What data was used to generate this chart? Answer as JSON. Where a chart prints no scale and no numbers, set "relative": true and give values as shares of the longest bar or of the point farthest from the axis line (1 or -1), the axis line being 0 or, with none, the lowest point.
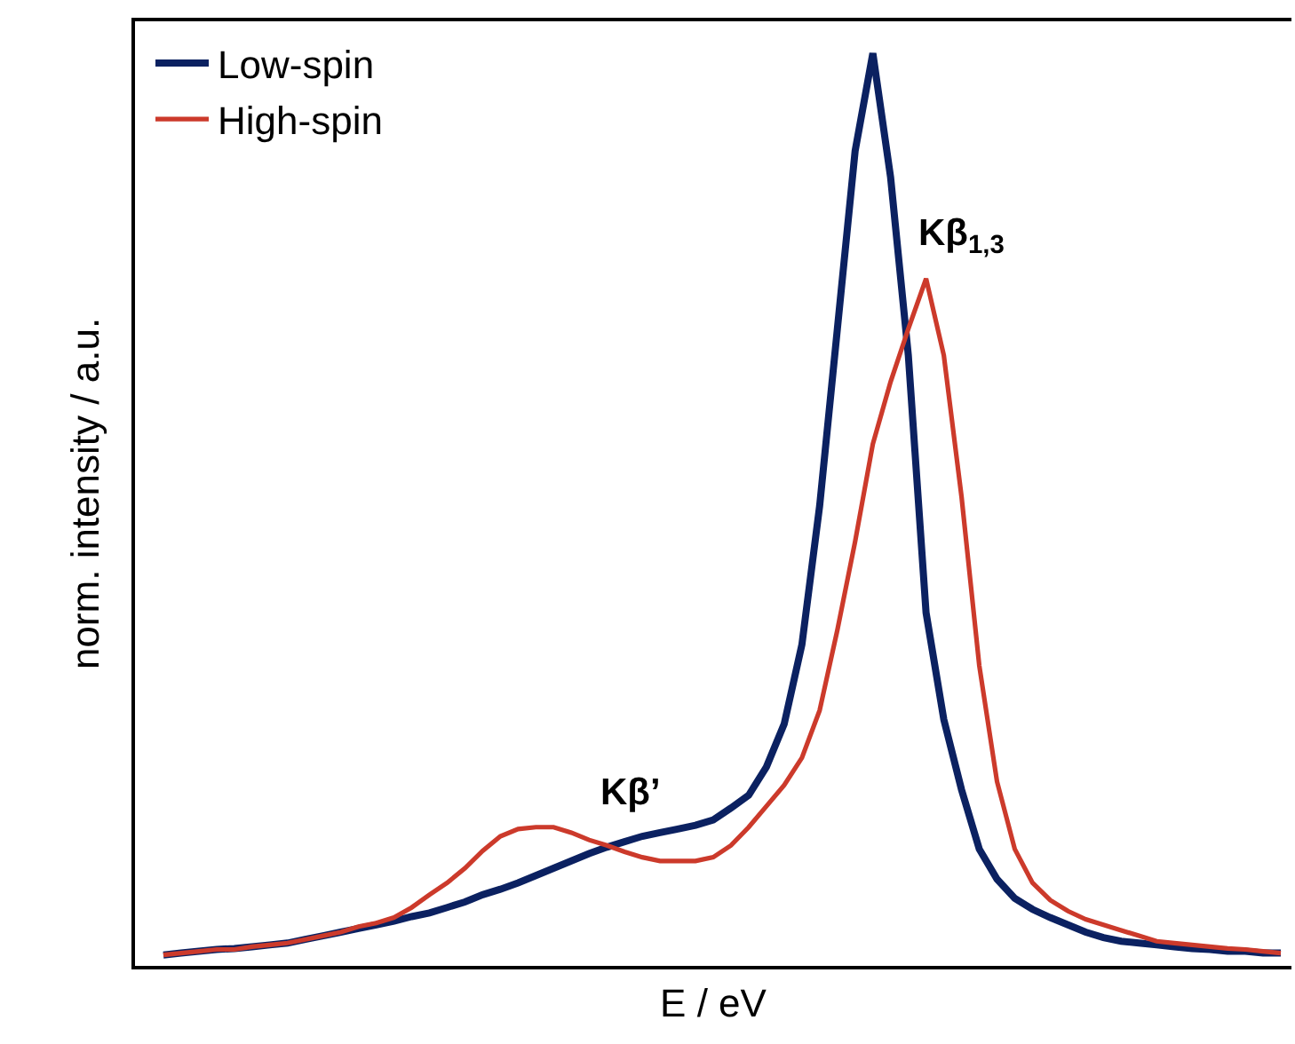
{
  "chart_data": {
    "type": "line",
    "xlabel": "E / eV",
    "ylabel": "norm. intensity / a.u.",
    "relative": true,
    "legend": "top left",
    "grid": false,
    "marker": "none",
    "line_style": "solid",
    "categories": [
      null,
      null,
      null,
      null,
      null,
      null,
      null,
      null,
      null,
      null,
      null,
      null,
      null,
      null,
      null,
      null,
      null,
      null,
      null,
      null,
      null,
      null,
      null,
      null,
      null,
      null,
      null,
      null,
      null,
      null,
      null,
      null,
      null,
      null,
      null,
      null,
      null,
      null,
      null,
      null,
      null,
      null,
      null,
      null,
      null,
      null,
      null,
      null,
      null,
      null,
      null,
      null,
      null,
      null,
      null,
      null,
      null,
      null,
      null,
      null,
      null,
      null,
      null,
      null
    ],
    "series": [
      {
        "name": "Low-spin",
        "color": "#0b2161",
        "values": [
          0.012,
          0.014,
          0.016,
          0.018,
          0.019,
          0.021,
          0.023,
          0.025,
          0.029,
          0.033,
          0.037,
          0.041,
          0.045,
          0.049,
          0.054,
          0.058,
          0.064,
          0.07,
          0.078,
          0.084,
          0.091,
          0.099,
          0.107,
          0.115,
          0.123,
          0.13,
          0.136,
          0.142,
          0.146,
          0.15,
          0.154,
          0.16,
          0.173,
          0.187,
          0.218,
          0.265,
          0.352,
          0.504,
          0.698,
          0.893,
          1,
          0.864,
          0.669,
          0.387,
          0.27,
          0.193,
          0.128,
          0.095,
          0.074,
          0.062,
          0.053,
          0.045,
          0.037,
          0.031,
          0.027,
          0.025,
          0.023,
          0.021,
          0.019,
          0.018,
          0.016,
          0.016,
          0.014,
          0.014
        ]
      },
      {
        "name": "High-spin",
        "color": "#cc3a2b",
        "values": [
          0.012,
          0.014,
          0.016,
          0.018,
          0.018,
          0.021,
          0.023,
          0.025,
          0.029,
          0.033,
          0.037,
          0.043,
          0.047,
          0.053,
          0.064,
          0.078,
          0.091,
          0.107,
          0.126,
          0.142,
          0.15,
          0.152,
          0.152,
          0.146,
          0.138,
          0.132,
          0.125,
          0.119,
          0.115,
          0.115,
          0.115,
          0.119,
          0.132,
          0.152,
          0.175,
          0.198,
          0.228,
          0.28,
          0.368,
          0.465,
          0.572,
          0.64,
          0.698,
          0.753,
          0.669,
          0.514,
          0.329,
          0.202,
          0.128,
          0.091,
          0.072,
          0.06,
          0.051,
          0.045,
          0.039,
          0.033,
          0.027,
          0.025,
          0.023,
          0.021,
          0.019,
          0.018,
          0.016,
          0.014
        ]
      }
    ],
    "annotations": [
      "Kβ’",
      "Kβ$_{1,3}$"
    ]
  }
}
